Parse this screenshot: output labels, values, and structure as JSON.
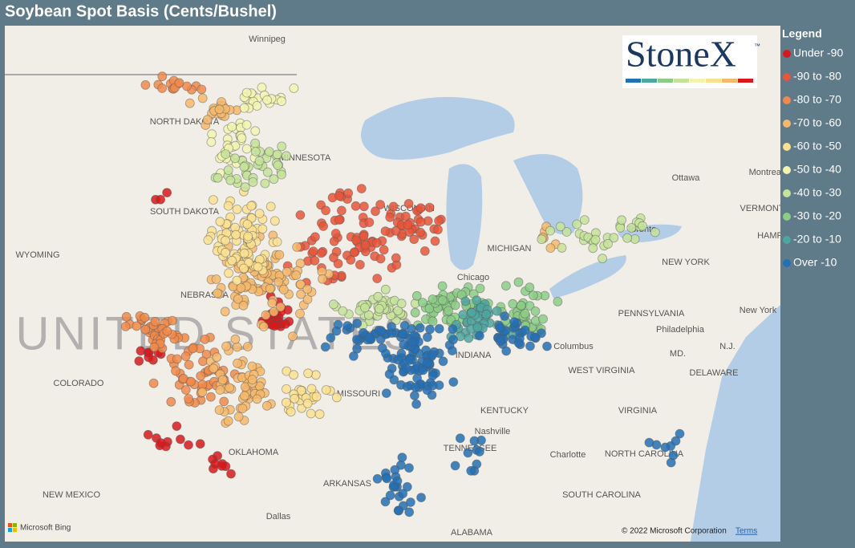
{
  "header": {
    "title": "Soybean Spot Basis (Cents/Bushel)"
  },
  "legend": {
    "title": "Legend",
    "items": [
      {
        "label": "Under -90",
        "color": "#d7191c"
      },
      {
        "label": "-90 to -80",
        "color": "#e8553a"
      },
      {
        "label": "-80 to -70",
        "color": "#f08a4b"
      },
      {
        "label": "-70 to -60",
        "color": "#f6b86b"
      },
      {
        "label": "-60 to -50",
        "color": "#fbe08f"
      },
      {
        "label": "-50 to -40",
        "color": "#f2f4b0"
      },
      {
        "label": "-40 to -30",
        "color": "#c5e39a"
      },
      {
        "label": "-30 to -20",
        "color": "#8ccc86"
      },
      {
        "label": "-20 to -10",
        "color": "#4ea6a0"
      },
      {
        "label": "Over -10",
        "color": "#2470b4"
      }
    ]
  },
  "logo": {
    "text": "StoneX",
    "mark": "™"
  },
  "map": {
    "labels": [
      "Winnipeg",
      "NORTH DAKOTA",
      "MINNESOTA",
      "SOUTH DAKOTA",
      "WYOMING",
      "NEBRASKA",
      "WISCONSIN",
      "MICHIGAN",
      "Chicago",
      "COLORADO",
      "MISSOURI",
      "INDIANA",
      "Columbus",
      "PENNSYLVANIA",
      "Philadelphia",
      "MD.",
      "NEW YORK",
      "Toronto",
      "Ottawa",
      "Montreal",
      "VERMONT",
      "HAMP",
      "New York",
      "N.J.",
      "DELAWARE",
      "WEST VIRGINIA",
      "KENTUCKY",
      "VIRGINIA",
      "Nashville",
      "TENNESSEE",
      "NORTH CAROLINA",
      "Charlotte",
      "OKLAHOMA",
      "ARKANSAS",
      "NEW MEXICO",
      "SOUTH CAROLINA",
      "Dallas",
      "ALABAMA",
      "UNITED STATES"
    ],
    "credits": {
      "bing": "Microsoft Bing",
      "copyright": "© 2022 Microsoft Corporation",
      "terms": "Terms"
    }
  }
}
